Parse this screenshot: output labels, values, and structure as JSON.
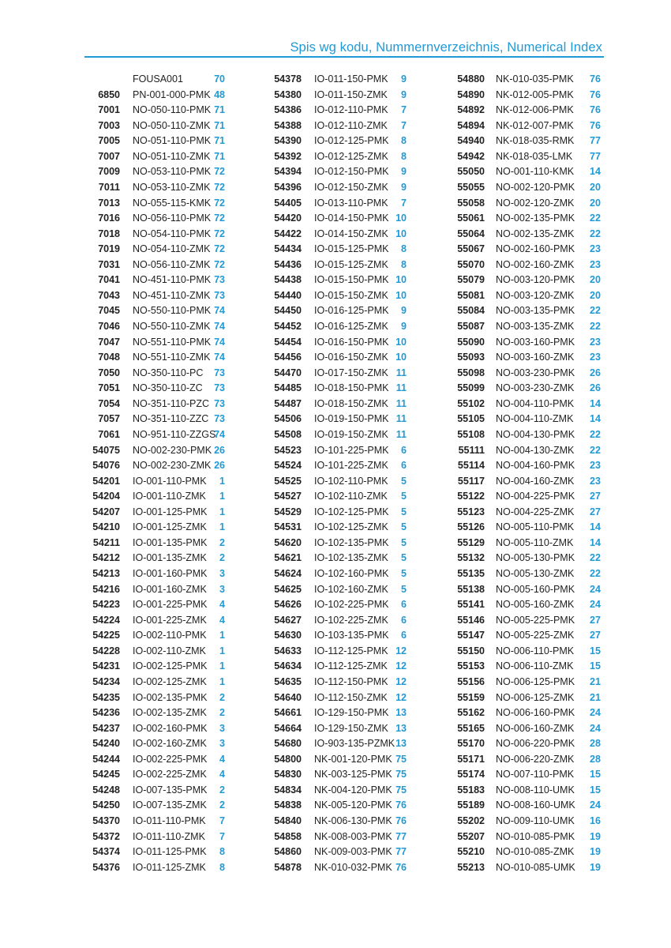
{
  "header": {
    "title": "Spis wg kodu, Nummernverzeichnis, Numerical Index",
    "accent_color": "#1f9ad6"
  },
  "columns": [
    [
      [
        "",
        "FOUSA001",
        "70"
      ],
      [
        "6850",
        "PN-001-000-PMK",
        "48"
      ],
      [
        "7001",
        "NO-050-110-PMK",
        "71"
      ],
      [
        "7003",
        "NO-050-110-ZMK",
        "71"
      ],
      [
        "7005",
        "NO-051-110-PMK",
        "71"
      ],
      [
        "7007",
        "NO-051-110-ZMK",
        "71"
      ],
      [
        "7009",
        "NO-053-110-PMK",
        "72"
      ],
      [
        "7011",
        "NO-053-110-ZMK",
        "72"
      ],
      [
        "7013",
        "NO-055-115-KMK",
        "72"
      ],
      [
        "7016",
        "NO-056-110-PMK",
        "72"
      ],
      [
        "7018",
        "NO-054-110-PMK",
        "72"
      ],
      [
        "7019",
        "NO-054-110-ZMK",
        "72"
      ],
      [
        "7031",
        "NO-056-110-ZMK",
        "72"
      ],
      [
        "7041",
        "NO-451-110-PMK",
        "73"
      ],
      [
        "7043",
        "NO-451-110-ZMK",
        "73"
      ],
      [
        "7045",
        "NO-550-110-PMK",
        "74"
      ],
      [
        "7046",
        "NO-550-110-ZMK",
        "74"
      ],
      [
        "7047",
        "NO-551-110-PMK",
        "74"
      ],
      [
        "7048",
        "NO-551-110-ZMK",
        "74"
      ],
      [
        "7050",
        "NO-350-110-PC",
        "73"
      ],
      [
        "7051",
        "NO-350-110-ZC",
        "73"
      ],
      [
        "7054",
        "NO-351-110-PZC",
        "73"
      ],
      [
        "7057",
        "NO-351-110-ZZC",
        "73"
      ],
      [
        "7061",
        "NO-951-110-ZZGS",
        "74"
      ],
      [
        "54075",
        "NO-002-230-PMK",
        "26"
      ],
      [
        "54076",
        "NO-002-230-ZMK",
        "26"
      ],
      [
        "54201",
        "IO-001-110-PMK",
        "1"
      ],
      [
        "54204",
        "IO-001-110-ZMK",
        "1"
      ],
      [
        "54207",
        "IO-001-125-PMK",
        "1"
      ],
      [
        "54210",
        "IO-001-125-ZMK",
        "1"
      ],
      [
        "54211",
        "IO-001-135-PMK",
        "2"
      ],
      [
        "54212",
        "IO-001-135-ZMK",
        "2"
      ],
      [
        "54213",
        "IO-001-160-PMK",
        "3"
      ],
      [
        "54216",
        "IO-001-160-ZMK",
        "3"
      ],
      [
        "54223",
        "IO-001-225-PMK",
        "4"
      ],
      [
        "54224",
        "IO-001-225-ZMK",
        "4"
      ],
      [
        "54225",
        "IO-002-110-PMK",
        "1"
      ],
      [
        "54228",
        "IO-002-110-ZMK",
        "1"
      ],
      [
        "54231",
        "IO-002-125-PMK",
        "1"
      ],
      [
        "54234",
        "IO-002-125-ZMK",
        "1"
      ],
      [
        "54235",
        "IO-002-135-PMK",
        "2"
      ],
      [
        "54236",
        "IO-002-135-ZMK",
        "2"
      ],
      [
        "54237",
        "IO-002-160-PMK",
        "3"
      ],
      [
        "54240",
        "IO-002-160-ZMK",
        "3"
      ],
      [
        "54244",
        "IO-002-225-PMK",
        "4"
      ],
      [
        "54245",
        "IO-002-225-ZMK",
        "4"
      ],
      [
        "54248",
        "IO-007-135-PMK",
        "2"
      ],
      [
        "54250",
        "IO-007-135-ZMK",
        "2"
      ],
      [
        "54370",
        "IO-011-110-PMK",
        "7"
      ],
      [
        "54372",
        "IO-011-110-ZMK",
        "7"
      ],
      [
        "54374",
        "IO-011-125-PMK",
        "8"
      ],
      [
        "54376",
        "IO-011-125-ZMK",
        "8"
      ]
    ],
    [
      [
        "54378",
        "IO-011-150-PMK",
        "9"
      ],
      [
        "54380",
        "IO-011-150-ZMK",
        "9"
      ],
      [
        "54386",
        "IO-012-110-PMK",
        "7"
      ],
      [
        "54388",
        "IO-012-110-ZMK",
        "7"
      ],
      [
        "54390",
        "IO-012-125-PMK",
        "8"
      ],
      [
        "54392",
        "IO-012-125-ZMK",
        "8"
      ],
      [
        "54394",
        "IO-012-150-PMK",
        "9"
      ],
      [
        "54396",
        "IO-012-150-ZMK",
        "9"
      ],
      [
        "54405",
        "IO-013-110-PMK",
        "7"
      ],
      [
        "54420",
        "IO-014-150-PMK",
        "10"
      ],
      [
        "54422",
        "IO-014-150-ZMK",
        "10"
      ],
      [
        "54434",
        "IO-015-125-PMK",
        "8"
      ],
      [
        "54436",
        "IO-015-125-ZMK",
        "8"
      ],
      [
        "54438",
        "IO-015-150-PMK",
        "10"
      ],
      [
        "54440",
        "IO-015-150-ZMK",
        "10"
      ],
      [
        "54450",
        "IO-016-125-PMK",
        "9"
      ],
      [
        "54452",
        "IO-016-125-ZMK",
        "9"
      ],
      [
        "54454",
        "IO-016-150-PMK",
        "10"
      ],
      [
        "54456",
        "IO-016-150-ZMK",
        "10"
      ],
      [
        "54470",
        "IO-017-150-ZMK",
        "11"
      ],
      [
        "54485",
        "IO-018-150-PMK",
        "11"
      ],
      [
        "54487",
        "IO-018-150-ZMK",
        "11"
      ],
      [
        "54506",
        "IO-019-150-PMK",
        "11"
      ],
      [
        "54508",
        "IO-019-150-ZMK",
        "11"
      ],
      [
        "54523",
        "IO-101-225-PMK",
        "6"
      ],
      [
        "54524",
        "IO-101-225-ZMK",
        "6"
      ],
      [
        "54525",
        "IO-102-110-PMK",
        "5"
      ],
      [
        "54527",
        "IO-102-110-ZMK",
        "5"
      ],
      [
        "54529",
        "IO-102-125-PMK",
        "5"
      ],
      [
        "54531",
        "IO-102-125-ZMK",
        "5"
      ],
      [
        "54620",
        "IO-102-135-PMK",
        "5"
      ],
      [
        "54621",
        "IO-102-135-ZMK",
        "5"
      ],
      [
        "54624",
        "IO-102-160-PMK",
        "5"
      ],
      [
        "54625",
        "IO-102-160-ZMK",
        "5"
      ],
      [
        "54626",
        "IO-102-225-PMK",
        "6"
      ],
      [
        "54627",
        "IO-102-225-ZMK",
        "6"
      ],
      [
        "54630",
        "IO-103-135-PMK",
        "6"
      ],
      [
        "54633",
        "IO-112-125-PMK",
        "12"
      ],
      [
        "54634",
        "IO-112-125-ZMK",
        "12"
      ],
      [
        "54635",
        "IO-112-150-PMK",
        "12"
      ],
      [
        "54640",
        "IO-112-150-ZMK",
        "12"
      ],
      [
        "54661",
        "IO-129-150-PMK",
        "13"
      ],
      [
        "54664",
        "IO-129-150-ZMK",
        "13"
      ],
      [
        "54680",
        "IO-903-135-PZMK",
        "13"
      ],
      [
        "54800",
        "NK-001-120-PMK",
        "75"
      ],
      [
        "54830",
        "NK-003-125-PMK",
        "75"
      ],
      [
        "54834",
        "NK-004-120-PMK",
        "75"
      ],
      [
        "54838",
        "NK-005-120-PMK",
        "76"
      ],
      [
        "54840",
        "NK-006-130-PMK",
        "76"
      ],
      [
        "54858",
        "NK-008-003-PMK",
        "77"
      ],
      [
        "54860",
        "NK-009-003-PMK",
        "77"
      ],
      [
        "54878",
        "NK-010-032-PMK",
        "76"
      ]
    ],
    [
      [
        "54880",
        "NK-010-035-PMK",
        "76"
      ],
      [
        "54890",
        "NK-012-005-PMK",
        "76"
      ],
      [
        "54892",
        "NK-012-006-PMK",
        "76"
      ],
      [
        "54894",
        "NK-012-007-PMK",
        "76"
      ],
      [
        "54940",
        "NK-018-035-RMK",
        "77"
      ],
      [
        "54942",
        "NK-018-035-LMK",
        "77"
      ],
      [
        "55050",
        "NO-001-110-KMK",
        "14"
      ],
      [
        "55055",
        "NO-002-120-PMK",
        "20"
      ],
      [
        "55058",
        "NO-002-120-ZMK",
        "20"
      ],
      [
        "55061",
        "NO-002-135-PMK",
        "22"
      ],
      [
        "55064",
        "NO-002-135-ZMK",
        "22"
      ],
      [
        "55067",
        "NO-002-160-PMK",
        "23"
      ],
      [
        "55070",
        "NO-002-160-ZMK",
        "23"
      ],
      [
        "55079",
        "NO-003-120-PMK",
        "20"
      ],
      [
        "55081",
        "NO-003-120-ZMK",
        "20"
      ],
      [
        "55084",
        "NO-003-135-PMK",
        "22"
      ],
      [
        "55087",
        "NO-003-135-ZMK",
        "22"
      ],
      [
        "55090",
        "NO-003-160-PMK",
        "23"
      ],
      [
        "55093",
        "NO-003-160-ZMK",
        "23"
      ],
      [
        "55098",
        "NO-003-230-PMK",
        "26"
      ],
      [
        "55099",
        "NO-003-230-ZMK",
        "26"
      ],
      [
        "55102",
        "NO-004-110-PMK",
        "14"
      ],
      [
        "55105",
        "NO-004-110-ZMK",
        "14"
      ],
      [
        "55108",
        "NO-004-130-PMK",
        "22"
      ],
      [
        "55111",
        "NO-004-130-ZMK",
        "22"
      ],
      [
        "55114",
        "NO-004-160-PMK",
        "23"
      ],
      [
        "55117",
        "NO-004-160-ZMK",
        "23"
      ],
      [
        "55122",
        "NO-004-225-PMK",
        "27"
      ],
      [
        "55123",
        "NO-004-225-ZMK",
        "27"
      ],
      [
        "55126",
        "NO-005-110-PMK",
        "14"
      ],
      [
        "55129",
        "NO-005-110-ZMK",
        "14"
      ],
      [
        "55132",
        "NO-005-130-PMK",
        "22"
      ],
      [
        "55135",
        "NO-005-130-ZMK",
        "22"
      ],
      [
        "55138",
        "NO-005-160-PMK",
        "24"
      ],
      [
        "55141",
        "NO-005-160-ZMK",
        "24"
      ],
      [
        "55146",
        "NO-005-225-PMK",
        "27"
      ],
      [
        "55147",
        "NO-005-225-ZMK",
        "27"
      ],
      [
        "55150",
        "NO-006-110-PMK",
        "15"
      ],
      [
        "55153",
        "NO-006-110-ZMK",
        "15"
      ],
      [
        "55156",
        "NO-006-125-PMK",
        "21"
      ],
      [
        "55159",
        "NO-006-125-ZMK",
        "21"
      ],
      [
        "55162",
        "NO-006-160-PMK",
        "24"
      ],
      [
        "55165",
        "NO-006-160-ZMK",
        "24"
      ],
      [
        "55170",
        "NO-006-220-PMK",
        "28"
      ],
      [
        "55171",
        "NO-006-220-ZMK",
        "28"
      ],
      [
        "55174",
        "NO-007-110-PMK",
        "15"
      ],
      [
        "55183",
        "NO-008-110-UMK",
        "15"
      ],
      [
        "55189",
        "NO-008-160-UMK",
        "24"
      ],
      [
        "55202",
        "NO-009-110-UMK",
        "16"
      ],
      [
        "55207",
        "NO-010-085-PMK",
        "19"
      ],
      [
        "55210",
        "NO-010-085-ZMK",
        "19"
      ],
      [
        "55213",
        "NO-010-085-UMK",
        "19"
      ]
    ]
  ]
}
